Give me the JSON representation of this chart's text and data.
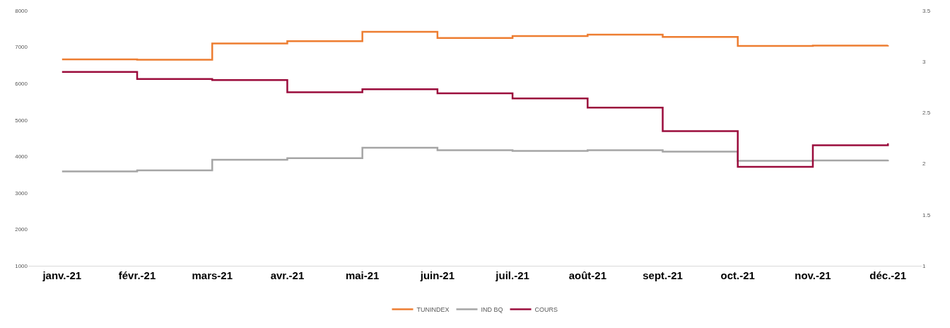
{
  "chart_data": {
    "type": "step",
    "categories": [
      "janv.-21",
      "févr.-21",
      "mars-21",
      "avr.-21",
      "mai-21",
      "juin-21",
      "juil.-21",
      "août-21",
      "sept.-21",
      "oct.-21",
      "nov.-21",
      "déc.-21"
    ],
    "series": [
      {
        "name": "TUNINDEX",
        "color": "#ed7d31",
        "values": [
          6660,
          6650,
          7100,
          7160,
          7420,
          7250,
          7300,
          7340,
          7280,
          7030,
          7040,
          7050
        ]
      },
      {
        "name": "IND BQ",
        "color": "#a5a5a5",
        "values": [
          3590,
          3620,
          3910,
          3950,
          4240,
          4170,
          4150,
          4170,
          4130,
          3880,
          3890,
          3910
        ]
      },
      {
        "name": "COURS",
        "color": "#9b0c3c",
        "axis": "y2",
        "values": [
          2.9,
          2.83,
          2.82,
          2.7,
          2.73,
          2.69,
          2.64,
          2.55,
          2.32,
          1.97,
          2.18,
          2.2
        ]
      }
    ],
    "ylim": [
      1000,
      8000
    ],
    "yticks": [
      1000,
      2000,
      3000,
      4000,
      5000,
      6000,
      7000,
      8000
    ],
    "y2lim": [
      1,
      3.5
    ],
    "y2ticks": [
      1,
      1.5,
      2,
      2.5,
      3,
      3.5
    ],
    "legend": "bottom"
  }
}
